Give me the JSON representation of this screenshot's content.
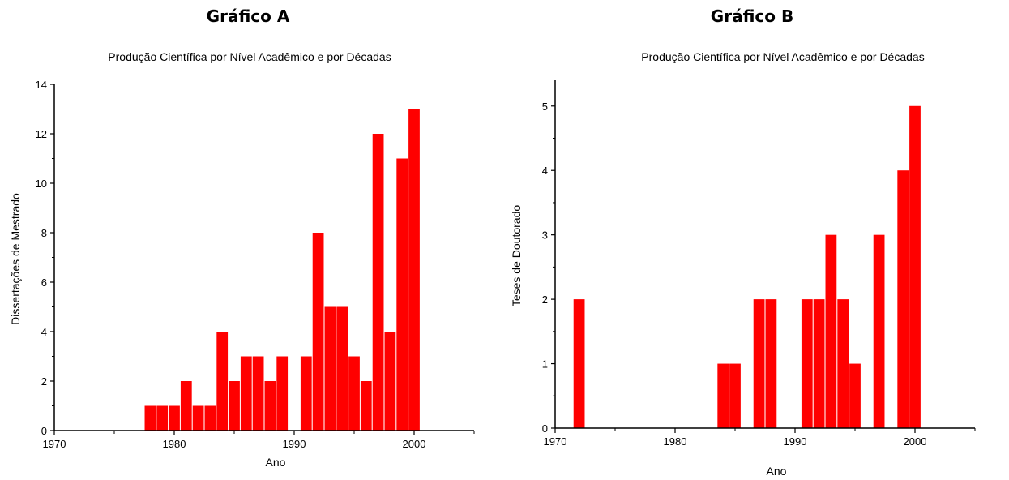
{
  "panels": {
    "a": {
      "heading": "Gráfico A"
    },
    "b": {
      "heading": "Gráfico B"
    }
  },
  "colors": {
    "bar": "#ff0000",
    "axis": "#000000"
  },
  "chart_data": [
    {
      "type": "bar",
      "title": "Produção Científica por Nível Acadêmico e por Décadas",
      "xlabel": "Ano",
      "ylabel": "Dissertações de Mestrado",
      "xlim": [
        1970,
        2005
      ],
      "ylim": [
        0,
        14
      ],
      "xticks": [
        1970,
        1980,
        1990,
        2000
      ],
      "yticks": [
        0,
        2,
        4,
        6,
        8,
        10,
        12,
        14
      ],
      "grid": false,
      "x": [
        1978,
        1979,
        1980,
        1981,
        1982,
        1983,
        1984,
        1985,
        1986,
        1987,
        1988,
        1989,
        1991,
        1992,
        1993,
        1994,
        1995,
        1996,
        1997,
        1998,
        1999,
        2000
      ],
      "values": [
        1,
        1,
        1,
        2,
        1,
        1,
        4,
        2,
        3,
        3,
        2,
        3,
        3,
        8,
        5,
        5,
        3,
        2,
        12,
        4,
        11,
        13
      ]
    },
    {
      "type": "bar",
      "title": "Produção Científica por Nível Acadêmico e por Décadas",
      "xlabel": "Ano",
      "ylabel": "Teses de Doutorado",
      "xlim": [
        1970,
        2005
      ],
      "ylim": [
        0,
        5.4
      ],
      "xticks": [
        1970,
        1980,
        1990,
        2000
      ],
      "yticks": [
        0,
        1,
        2,
        3,
        4,
        5
      ],
      "grid": false,
      "x": [
        1972,
        1984,
        1985,
        1987,
        1988,
        1991,
        1992,
        1993,
        1994,
        1995,
        1997,
        1999,
        2000
      ],
      "values": [
        2,
        1,
        1,
        2,
        2,
        2,
        2,
        3,
        2,
        1,
        3,
        4,
        5
      ]
    }
  ]
}
